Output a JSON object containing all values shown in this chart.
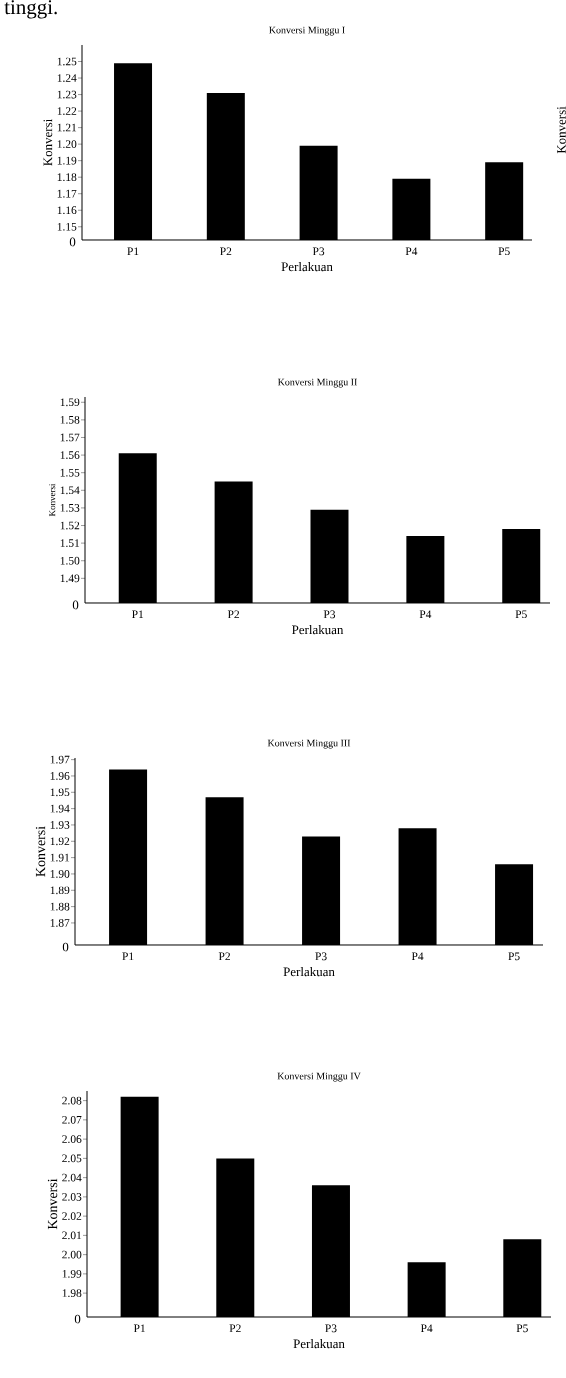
{
  "chart_data": [
    {
      "type": "bar",
      "title": "Konversi Minggu I",
      "xlabel": "Perlakuan",
      "ylabel": "Konversi",
      "categories": [
        "P1",
        "P2",
        "P3",
        "P4",
        "P5"
      ],
      "values": [
        1.249,
        1.231,
        1.199,
        1.179,
        1.189
      ],
      "color": "#000000",
      "ylim": [
        1.142,
        1.26
      ],
      "yticks": [
        1.15,
        1.16,
        1.17,
        1.18,
        1.19,
        {
          "value": 1.2,
          "label": "1.20"
        },
        1.21,
        1.22,
        1.23,
        1.24,
        1.25
      ],
      "annotations": [
        "0",
        "tinggi.",
        "Konversi"
      ]
    },
    {
      "type": "bar",
      "title": "Konversi Minggu II",
      "xlabel": "Perlakuan",
      "ylabel": "Konversi",
      "categories": [
        "P1",
        "P2",
        "P3",
        "P4",
        "P5"
      ],
      "values": [
        1.561,
        1.545,
        1.529,
        1.514,
        1.518
      ],
      "color": "#000000",
      "ylim": [
        1.476,
        1.593
      ],
      "yticks": [
        1.49,
        {
          "value": 1.5,
          "label": "1.50"
        },
        1.51,
        1.52,
        1.53,
        1.54,
        1.55,
        1.56,
        1.57,
        1.58,
        1.59
      ],
      "annotations": [
        "0"
      ]
    },
    {
      "type": "bar",
      "title": "Konversi Minggu III",
      "xlabel": "Perlakuan",
      "ylabel": "Konversi",
      "categories": [
        "P1",
        "P2",
        "P3",
        "P4",
        "P5"
      ],
      "values": [
        1.964,
        1.947,
        1.923,
        1.928,
        1.906
      ],
      "color": "#000000",
      "ylim": [
        1.8565,
        1.971
      ],
      "yticks": [
        1.87,
        1.88,
        1.89,
        {
          "value": 1.9,
          "label": "1.90"
        },
        1.91,
        1.92,
        1.93,
        1.94,
        1.95,
        1.96,
        1.97
      ],
      "annotations": [
        "0"
      ]
    },
    {
      "type": "bar",
      "title": "Konversi Minggu IV",
      "xlabel": "Perlakuan",
      "ylabel": "Konversi",
      "categories": [
        "P1",
        "P2",
        "P3",
        "P4",
        "P5"
      ],
      "values": [
        2.082,
        2.05,
        2.036,
        1.996,
        2.008
      ],
      "color": "#000000",
      "ylim": [
        1.9676,
        2.085
      ],
      "yticks": [
        1.98,
        1.99,
        {
          "value": 2.0,
          "label": "2.00"
        },
        2.01,
        2.02,
        2.03,
        2.04,
        2.05,
        2.06,
        2.07,
        2.08
      ],
      "annotations": [
        "0"
      ]
    }
  ]
}
